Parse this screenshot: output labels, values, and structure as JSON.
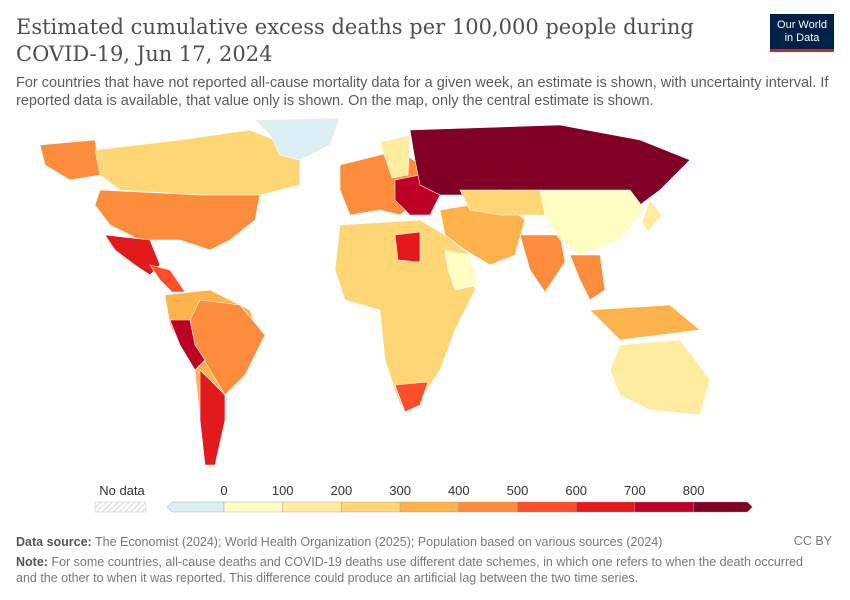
{
  "title": "Estimated cumulative excess deaths per 100,000 people during COVID-19, Jun 17, 2024",
  "subtitle": "For countries that have not reported all-cause mortality data for a given week, an estimate is shown, with uncertainty interval. If reported data is available, that value only is shown. On the map, only the central estimate is shown.",
  "logo": {
    "line1": "Our World",
    "line2": "in Data"
  },
  "legend": {
    "no_data_label": "No data",
    "ticks": [
      "0",
      "100",
      "200",
      "300",
      "400",
      "500",
      "600",
      "700",
      "800"
    ],
    "bins": [
      {
        "range": "<0",
        "color": "#dbeef3"
      },
      {
        "range": "0-100",
        "color": "#fffcc4"
      },
      {
        "range": "100-200",
        "color": "#feeca0"
      },
      {
        "range": "200-300",
        "color": "#fed675"
      },
      {
        "range": "300-400",
        "color": "#feb24c"
      },
      {
        "range": "400-500",
        "color": "#fd8d3c"
      },
      {
        "range": "500-600",
        "color": "#fc4e2a"
      },
      {
        "range": "600-700",
        "color": "#e31a1c"
      },
      {
        "range": "700-800",
        "color": "#bd0026"
      },
      {
        "range": ">800",
        "color": "#800026"
      }
    ]
  },
  "regions": [
    {
      "name": "Canada",
      "bin": 3
    },
    {
      "name": "Alaska",
      "bin": 5
    },
    {
      "name": "United States",
      "bin": 5
    },
    {
      "name": "Greenland",
      "bin": 0
    },
    {
      "name": "Mexico",
      "bin": 7
    },
    {
      "name": "Central America",
      "bin": 6
    },
    {
      "name": "South America",
      "bin": 4
    },
    {
      "name": "Brazil",
      "bin": 5
    },
    {
      "name": "Peru",
      "bin": 8
    },
    {
      "name": "Argentina",
      "bin": 7
    },
    {
      "name": "Europe",
      "bin": 5
    },
    {
      "name": "Scandinavia",
      "bin": 2
    },
    {
      "name": "Eastern Europe",
      "bin": 8
    },
    {
      "name": "Russia",
      "bin": 9
    },
    {
      "name": "Africa",
      "bin": 3
    },
    {
      "name": "Libya",
      "bin": 7
    },
    {
      "name": "Horn of Africa",
      "bin": 1
    },
    {
      "name": "South Africa",
      "bin": 6
    },
    {
      "name": "Middle East",
      "bin": 4
    },
    {
      "name": "Kazakhstan",
      "bin": 3
    },
    {
      "name": "India",
      "bin": 5
    },
    {
      "name": "China",
      "bin": 1
    },
    {
      "name": "Southeast Asia",
      "bin": 5
    },
    {
      "name": "Indonesia",
      "bin": 4
    },
    {
      "name": "Japan",
      "bin": 2
    },
    {
      "name": "Australia",
      "bin": 2
    }
  ],
  "footer": {
    "source_label": "Data source:",
    "source": "The Economist (2024); World Health Organization (2025); Population based on various sources (2024)",
    "note_label": "Note:",
    "note": "For some countries, all-cause deaths and COVID-19 deaths use different date schemes, in which one refers to when the death occurred and the other to when it was reported. This difference could produce an artificial lag between the two time series.",
    "license": "CC BY"
  }
}
